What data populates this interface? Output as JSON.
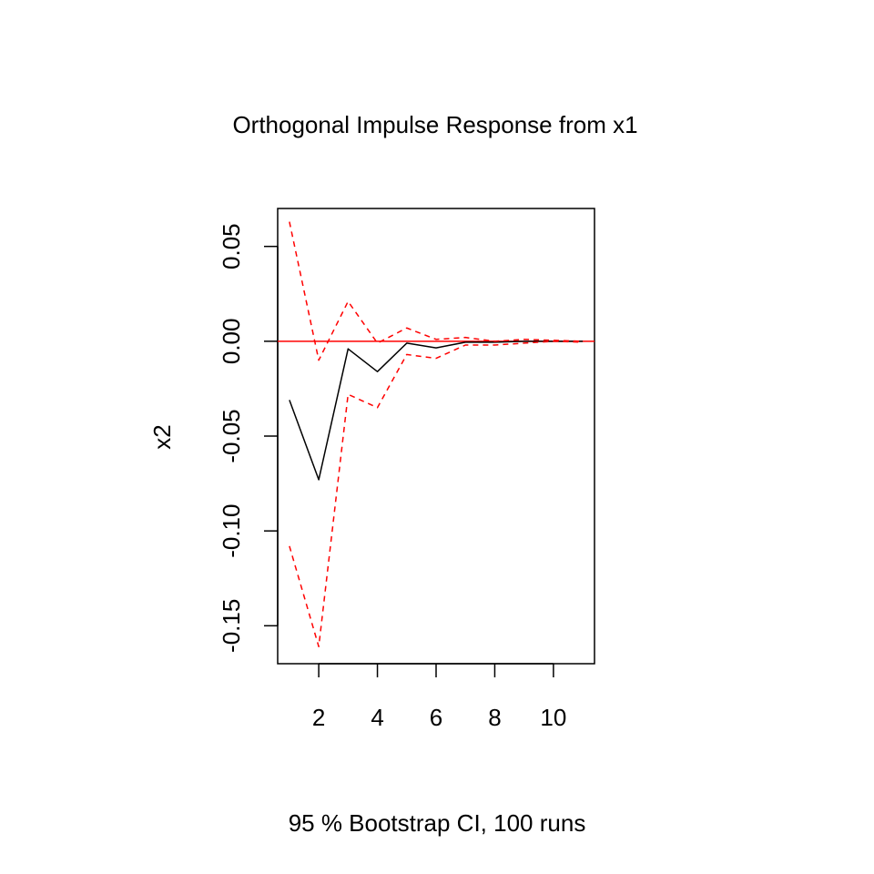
{
  "chart_data": {
    "type": "line",
    "title": "Orthogonal Impulse Response from x1",
    "xlabel": "",
    "ylabel": "x2",
    "subtitle": "95 % Bootstrap CI,  100 runs",
    "xlim": [
      0.6,
      11.4
    ],
    "ylim": [
      -0.17,
      0.07
    ],
    "x_ticks": [
      2,
      4,
      6,
      8,
      10
    ],
    "y_ticks": [
      -0.15,
      -0.1,
      -0.05,
      0.0,
      0.05
    ],
    "y_tick_labels": [
      "-0.15",
      "-0.10",
      "-0.05",
      "0.00",
      "0.05"
    ],
    "x": [
      1,
      2,
      3,
      4,
      5,
      6,
      7,
      8,
      9,
      10,
      11
    ],
    "series": [
      {
        "role": "irf",
        "color": "#000000",
        "dash": "solid",
        "values": [
          -0.031,
          -0.073,
          -0.004,
          -0.016,
          -0.001,
          -0.0035,
          -0.0005,
          -0.0005,
          0.0,
          0.0,
          0.0
        ]
      },
      {
        "role": "upper",
        "color": "#ff0000",
        "dash": "dashed",
        "values": [
          0.063,
          -0.01,
          0.021,
          -0.001,
          0.007,
          0.001,
          0.002,
          0.0,
          0.001,
          0.0005,
          0.0
        ]
      },
      {
        "role": "lower",
        "color": "#ff0000",
        "dash": "dashed",
        "values": [
          -0.108,
          -0.161,
          -0.028,
          -0.035,
          -0.007,
          -0.009,
          -0.002,
          -0.002,
          -0.001,
          0.0,
          -0.0005
        ]
      }
    ],
    "hline": {
      "y": 0.0,
      "color": "#ff0000"
    },
    "grid": false,
    "legend": "none"
  }
}
